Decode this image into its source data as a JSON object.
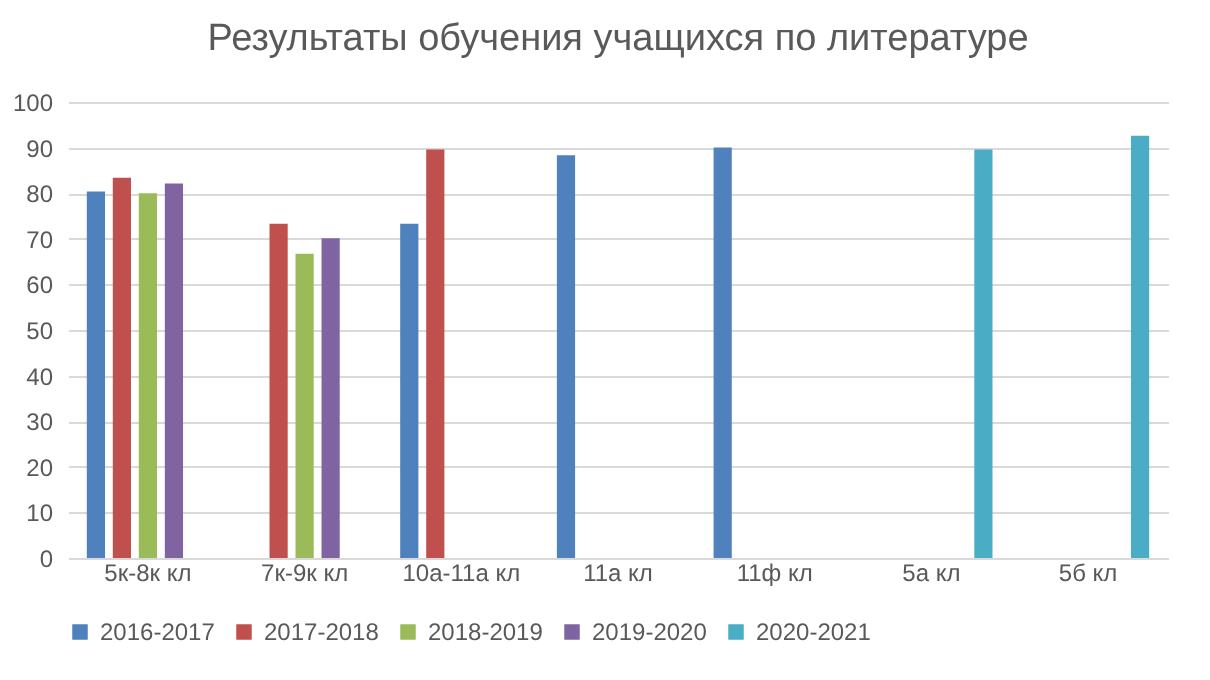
{
  "chart_data": {
    "type": "bar",
    "title": "Результаты обучения учащихся по литературе",
    "categories": [
      "5к-8к кл",
      "7к-9к кл",
      "10а-11а кл",
      "11а кл",
      "11ф кл",
      "5а кл",
      "5б кл"
    ],
    "series": [
      {
        "name": "2016-2017",
        "color": "#4f81bd",
        "values": [
          80.4,
          null,
          73.3,
          88.3,
          90,
          null,
          null
        ]
      },
      {
        "name": "2017-2018",
        "color": "#c0504d",
        "values": [
          83.4,
          73.3,
          89.6,
          null,
          null,
          null,
          null
        ]
      },
      {
        "name": "2018-2019",
        "color": "#9bbb59",
        "values": [
          80,
          66.7,
          null,
          null,
          null,
          null,
          null
        ]
      },
      {
        "name": "2019-2020",
        "color": "#8064a2",
        "values": [
          82.1,
          70.1,
          null,
          null,
          null,
          null,
          null
        ]
      },
      {
        "name": "2020-2021",
        "color": "#4bacc6",
        "values": [
          null,
          null,
          null,
          null,
          null,
          89.6,
          92.6
        ]
      }
    ],
    "ylim": [
      0,
      100
    ],
    "yticks": [
      0,
      10,
      20,
      30,
      40,
      50,
      60,
      70,
      80,
      90,
      100
    ],
    "grid": "y",
    "legend": "bottom"
  }
}
